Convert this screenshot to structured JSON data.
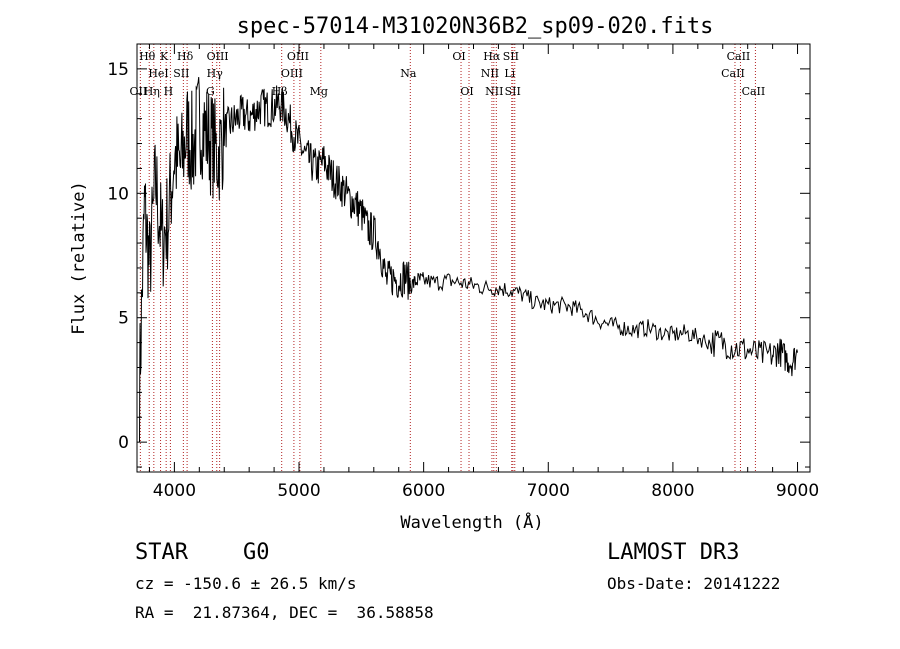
{
  "chart_data": {
    "type": "line",
    "title": "spec-57014-M31020N36B2_sp09-020.fits",
    "xlabel": "Wavelength (Å)",
    "ylabel": "Flux (relative)",
    "xlim": [
      3700,
      9100
    ],
    "ylim": [
      -1.2,
      16.0
    ],
    "x_ticks": [
      4000,
      5000,
      6000,
      7000,
      8000,
      9000
    ],
    "x_tick_labels": [
      "4000",
      "5000",
      "6000",
      "7000",
      "8000",
      "9000"
    ],
    "y_ticks": [
      0,
      5,
      10,
      15
    ],
    "y_tick_labels": [
      "0",
      "5",
      "10",
      "15"
    ],
    "series": [
      {
        "name": "spectrum",
        "x": [
          3720,
          3760,
          3800,
          3850,
          3900,
          3950,
          4000,
          4050,
          4100,
          4150,
          4200,
          4250,
          4300,
          4350,
          4400,
          4450,
          4500,
          4550,
          4600,
          4650,
          4700,
          4750,
          4800,
          4850,
          4900,
          4950,
          5000,
          5050,
          5100,
          5150,
          5200,
          5250,
          5300,
          5350,
          5400,
          5450,
          5500,
          5550,
          5600,
          5650,
          5700,
          5750,
          5800,
          5850,
          5900,
          5950,
          6000,
          6100,
          6200,
          6300,
          6400,
          6500,
          6600,
          6700,
          6800,
          6900,
          7000,
          7100,
          7200,
          7300,
          7400,
          7500,
          7600,
          7700,
          7800,
          7900,
          8000,
          8100,
          8200,
          8300,
          8400,
          8500,
          8600,
          8700,
          8800,
          8850,
          8900,
          8950,
          9000
        ],
        "y": [
          2.2,
          9.5,
          7.0,
          10.5,
          8.0,
          9.0,
          11.5,
          11.0,
          12.5,
          11.8,
          13.0,
          12.5,
          12.0,
          11.5,
          12.5,
          12.8,
          13.0,
          13.2,
          13.0,
          13.3,
          13.5,
          13.4,
          13.5,
          13.6,
          13.2,
          12.5,
          12.0,
          11.5,
          11.2,
          11.0,
          11.3,
          10.8,
          10.5,
          10.2,
          9.8,
          9.6,
          9.2,
          8.6,
          8.4,
          7.8,
          6.5,
          6.6,
          6.5,
          6.7,
          6.3,
          6.5,
          6.5,
          6.4,
          6.5,
          6.4,
          6.3,
          6.2,
          6.2,
          6.1,
          5.9,
          5.6,
          5.5,
          5.5,
          5.4,
          5.2,
          4.9,
          4.7,
          4.6,
          4.5,
          4.6,
          4.4,
          4.3,
          4.4,
          4.2,
          4.0,
          4.0,
          3.8,
          3.7,
          3.5,
          3.5,
          3.7,
          3.4,
          3.2,
          3.6
        ]
      }
    ],
    "line_markers": [
      {
        "label": "OII",
        "wavelength": 3727,
        "row": 3
      },
      {
        "label": "Hθ",
        "wavelength": 3798,
        "row": 1
      },
      {
        "label": "Hη",
        "wavelength": 3835,
        "row": 3
      },
      {
        "label": "HeI",
        "wavelength": 3889,
        "row": 2
      },
      {
        "label": "K",
        "wavelength": 3934,
        "row": 1
      },
      {
        "label": "H",
        "wavelength": 3968,
        "row": 3
      },
      {
        "label": "SII",
        "wavelength": 4072,
        "row": 2
      },
      {
        "label": "Hδ",
        "wavelength": 4102,
        "row": 1
      },
      {
        "label": "Hγ",
        "wavelength": 4340,
        "row": 2
      },
      {
        "label": "G",
        "wavelength": 4305,
        "row": 3
      },
      {
        "label": "OIII",
        "wavelength": 4363,
        "row": 1
      },
      {
        "label": "Hβ",
        "wavelength": 4861,
        "row": 3
      },
      {
        "label": "OIII",
        "wavelength": 4959,
        "row": 2
      },
      {
        "label": "OIII",
        "wavelength": 5007,
        "row": 1
      },
      {
        "label": "Mg",
        "wavelength": 5175,
        "row": 3
      },
      {
        "label": "Na",
        "wavelength": 5893,
        "row": 2
      },
      {
        "label": "OI",
        "wavelength": 6300,
        "row": 1
      },
      {
        "label": "OI",
        "wavelength": 6364,
        "row": 3
      },
      {
        "label": "NII",
        "wavelength": 6548,
        "row": 2
      },
      {
        "label": "Hα",
        "wavelength": 6563,
        "row": 1
      },
      {
        "label": "NII",
        "wavelength": 6583,
        "row": 3
      },
      {
        "label": "Li",
        "wavelength": 6707,
        "row": 2
      },
      {
        "label": "SII",
        "wavelength": 6716,
        "row": 1
      },
      {
        "label": "SII",
        "wavelength": 6731,
        "row": 3
      },
      {
        "label": "CaII",
        "wavelength": 8498,
        "row": 2
      },
      {
        "label": "CaII",
        "wavelength": 8542,
        "row": 1
      },
      {
        "label": "CaII",
        "wavelength": 8662,
        "row": 3
      }
    ],
    "marker_color": "#b22222",
    "line_color": "#000000"
  },
  "info": {
    "object_type": "STAR",
    "subclass": "G0",
    "survey": "LAMOST DR3",
    "cz": "cz = -150.6 ± 26.5 km/s",
    "obs_date": "Obs-Date: 20141222",
    "coords": "RA =  21.87364, DEC =  36.58858"
  }
}
